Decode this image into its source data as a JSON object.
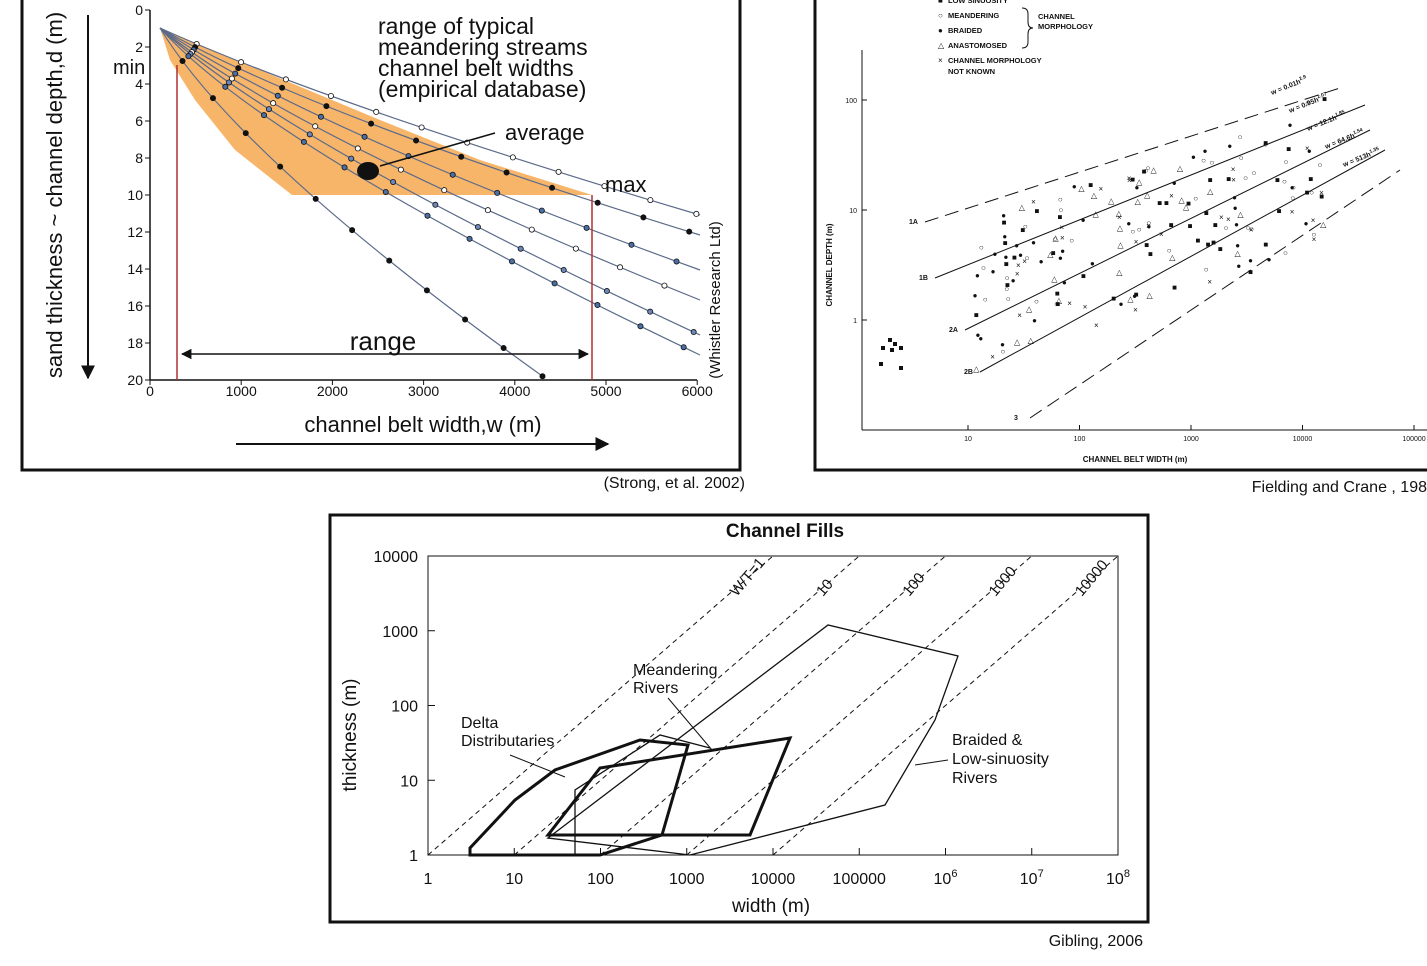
{
  "figure_1": {
    "y_axis_label": "sand thickness ~ channel depth,d (m)",
    "x_axis_label": "channel belt width,w (m)",
    "y_tick_labels": [
      "0",
      "2",
      "4",
      "6",
      "8",
      "10",
      "12",
      "14",
      "16",
      "18",
      "20"
    ],
    "x_tick_labels": [
      "0",
      "1000",
      "2000",
      "3000",
      "4000",
      "5000",
      "6000"
    ],
    "legend": [
      "range of typical",
      "meandering streams",
      "channel belt widths",
      "(empirical database)"
    ],
    "average": "average",
    "max": "max",
    "min": "min",
    "range": "range",
    "credit": "(Whistler Research Ltd)",
    "caption": "(Strong, et al. 2002)"
  },
  "figure_2": {
    "legend": [
      "LOW SINUOSITY",
      "MEANDERING",
      "BRAIDED",
      "ANASTOMOSED",
      "CHANNEL MORPHOLOGY",
      "NOT KNOWN"
    ],
    "legend_group": [
      "CHANNEL",
      "MORPHOLOGY"
    ],
    "y_axis_label": "CHANNEL DEPTH (m)",
    "x_axis_label": "CHANNEL BELT WIDTH (m)",
    "y_tick_labels": [
      "100",
      "10",
      "1"
    ],
    "x_tick_labels": [
      "10",
      "100",
      "1000",
      "10000",
      "100000"
    ],
    "line_labels": [
      "1A",
      "1B",
      "2A",
      "2B",
      "3"
    ],
    "equations": [
      {
        "text": "w = 0.01h",
        "exponent": "2.9"
      },
      {
        "text": "w = 0.95h",
        "exponent": "2.07"
      },
      {
        "text": "w = 12.1h",
        "exponent": "1.85"
      },
      {
        "text": "w = 64.6h",
        "exponent": "1.54"
      },
      {
        "text": "w = 513h",
        "exponent": "1.35"
      }
    ],
    "caption": "Fielding and Crane , 198"
  },
  "figure_3": {
    "title": "Channel Fills",
    "y_axis_label": "thickness (m)",
    "x_axis_label": "width (m)",
    "y_tick_labels": [
      "1",
      "10",
      "100",
      "1000",
      "10000"
    ],
    "x_tick_labels": [
      "1",
      "10",
      "100",
      "1000",
      "10000",
      "100000",
      {
        "base": "10",
        "exponent": "6"
      },
      {
        "base": "10",
        "exponent": "7"
      },
      {
        "base": "10",
        "exponent": "8"
      }
    ],
    "ratio_labels": [
      "W/T=1",
      "10",
      "100",
      "1000",
      "10000"
    ],
    "meandering": [
      "Meandering",
      "Rivers"
    ],
    "delta": [
      "Delta",
      "Distributaries"
    ],
    "braided": [
      "Braided &",
      "Low-sinuosity",
      "Rivers"
    ],
    "caption": "Gibling, 2006"
  }
}
